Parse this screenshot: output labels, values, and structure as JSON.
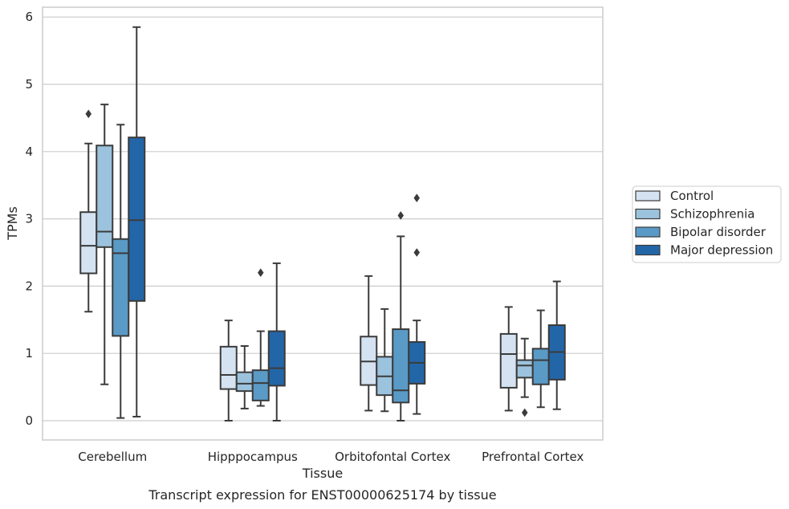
{
  "chart_data": {
    "type": "box",
    "caption": "Transcript expression for ENST00000625174 by tissue",
    "xlabel": "Tissue",
    "ylabel": "TPMs",
    "ylim": [
      -0.28,
      6.15
    ],
    "yticks": [
      0,
      1,
      2,
      3,
      4,
      5,
      6
    ],
    "grid": "horizontal",
    "legend_position": "right",
    "categories": [
      "Cerebellum",
      "Hipppocampus",
      "Orbitofontal Cortex",
      "Prefrontal Cortex"
    ],
    "series": [
      {
        "name": "Control",
        "color": "#d4e2f1",
        "boxes": [
          {
            "whislo": 1.62,
            "q1": 2.19,
            "med": 2.6,
            "q3": 3.1,
            "whishi": 4.12,
            "fliers": [
              4.56
            ]
          },
          {
            "whislo": 0.0,
            "q1": 0.47,
            "med": 0.68,
            "q3": 1.1,
            "whishi": 1.49,
            "fliers": []
          },
          {
            "whislo": 0.15,
            "q1": 0.53,
            "med": 0.88,
            "q3": 1.25,
            "whishi": 2.15,
            "fliers": []
          },
          {
            "whislo": 0.15,
            "q1": 0.49,
            "med": 0.99,
            "q3": 1.29,
            "whishi": 1.69,
            "fliers": []
          }
        ]
      },
      {
        "name": "Schizophrenia",
        "color": "#9cc3dd",
        "boxes": [
          {
            "whislo": 0.54,
            "q1": 2.58,
            "med": 2.81,
            "q3": 4.09,
            "whishi": 4.7,
            "fliers": []
          },
          {
            "whislo": 0.18,
            "q1": 0.44,
            "med": 0.55,
            "q3": 0.72,
            "whishi": 1.11,
            "fliers": []
          },
          {
            "whislo": 0.14,
            "q1": 0.38,
            "med": 0.66,
            "q3": 0.95,
            "whishi": 1.66,
            "fliers": []
          },
          {
            "whislo": 0.35,
            "q1": 0.64,
            "med": 0.82,
            "q3": 0.9,
            "whishi": 1.22,
            "fliers": [
              0.12
            ]
          }
        ]
      },
      {
        "name": "Bipolar disorder",
        "color": "#5a9ac6",
        "boxes": [
          {
            "whislo": 0.04,
            "q1": 1.26,
            "med": 2.49,
            "q3": 2.7,
            "whishi": 4.4,
            "fliers": []
          },
          {
            "whislo": 0.22,
            "q1": 0.3,
            "med": 0.56,
            "q3": 0.75,
            "whishi": 1.33,
            "fliers": [
              2.2
            ]
          },
          {
            "whislo": 0.0,
            "q1": 0.27,
            "med": 0.45,
            "q3": 1.36,
            "whishi": 2.74,
            "fliers": [
              3.05
            ]
          },
          {
            "whislo": 0.2,
            "q1": 0.54,
            "med": 0.9,
            "q3": 1.07,
            "whishi": 1.64,
            "fliers": []
          }
        ]
      },
      {
        "name": "Major depression",
        "color": "#2366a8",
        "boxes": [
          {
            "whislo": 0.06,
            "q1": 1.78,
            "med": 2.98,
            "q3": 4.21,
            "whishi": 5.85,
            "fliers": []
          },
          {
            "whislo": 0.0,
            "q1": 0.52,
            "med": 0.78,
            "q3": 1.33,
            "whishi": 2.34,
            "fliers": []
          },
          {
            "whislo": 0.1,
            "q1": 0.55,
            "med": 0.86,
            "q3": 1.17,
            "whishi": 1.49,
            "fliers": [
              2.5,
              3.31
            ]
          },
          {
            "whislo": 0.17,
            "q1": 0.61,
            "med": 1.02,
            "q3": 1.42,
            "whishi": 2.07,
            "fliers": []
          }
        ]
      }
    ]
  },
  "colors": {
    "edge": "#3b3b3b",
    "grid": "#cccccc",
    "frame": "#cccccc",
    "text": "#262626"
  }
}
